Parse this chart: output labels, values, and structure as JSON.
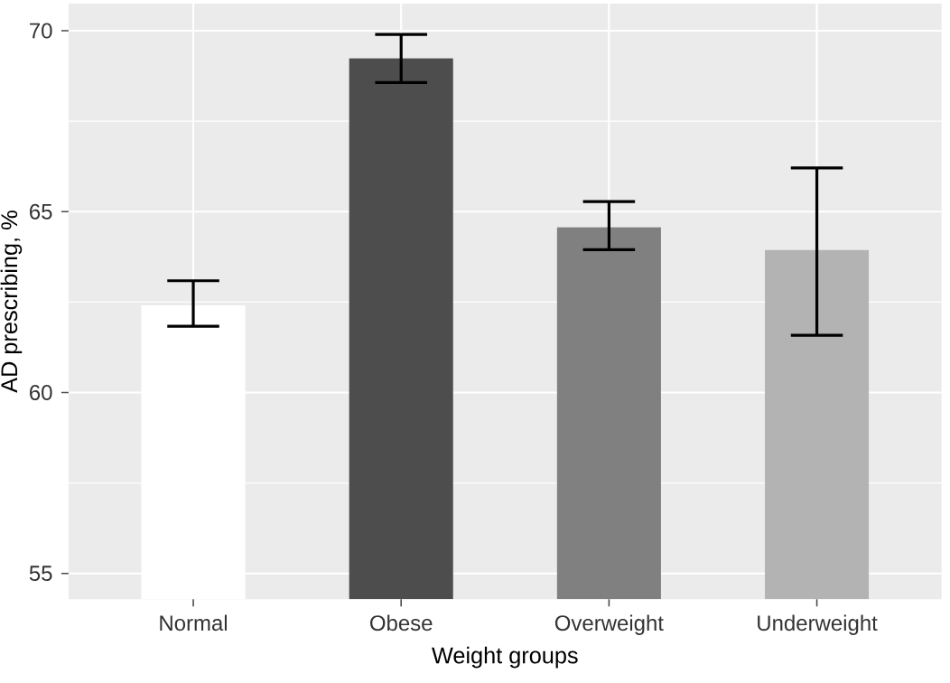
{
  "chart_data": {
    "type": "bar",
    "xlabel": "Weight groups",
    "ylabel": "AD prescribing, %",
    "categories": [
      "Normal",
      "Obese",
      "Overweight",
      "Underweight"
    ],
    "values": [
      62.41,
      69.24,
      64.57,
      63.94
    ],
    "colors": [
      "#ffffff",
      "#4d4d4d",
      "#808080",
      "#b3b3b3"
    ],
    "errors": [
      [
        61.83,
        63.09
      ],
      [
        68.57,
        69.9
      ],
      [
        63.95,
        65.28
      ],
      [
        61.58,
        66.21
      ]
    ],
    "ylim": [
      54.29,
      70.75
    ],
    "yticks": [
      55,
      60,
      65,
      70
    ],
    "grid": true
  }
}
